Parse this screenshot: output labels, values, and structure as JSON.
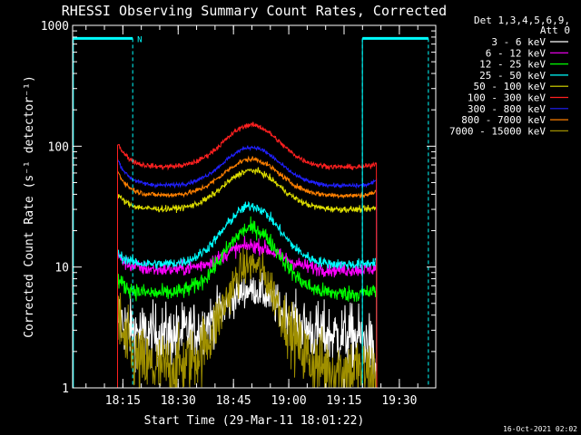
{
  "chart_data": {
    "type": "line",
    "title": "RHESSI Observing Summary Count Rates, Corrected",
    "xlabel": "Start Time (29-Mar-11 18:01:22)",
    "ylabel": "Corrected Count Rate (s⁻¹ detector⁻¹)",
    "yscale": "log",
    "ylim": [
      1,
      1000
    ],
    "xlim_minutes": [
      0,
      98.5
    ],
    "x_ticks": [
      {
        "label": "18:15",
        "minutes": 13.63
      },
      {
        "label": "18:30",
        "minutes": 28.63
      },
      {
        "label": "18:45",
        "minutes": 43.63
      },
      {
        "label": "19:00",
        "minutes": 58.63
      },
      {
        "label": "19:15",
        "minutes": 73.63
      },
      {
        "label": "19:30",
        "minutes": 88.63
      }
    ],
    "y_ticks": [
      {
        "label": "1",
        "value": 1
      },
      {
        "label": "10",
        "value": 10
      },
      {
        "label": "100",
        "value": 100
      },
      {
        "label": "1000",
        "value": 1000
      }
    ],
    "legend_header": [
      "Det 1,3,4,5,6,9,",
      "Att 0"
    ],
    "legend_placement": "top-right",
    "annotations": [
      {
        "text": "N",
        "minutes": 17.5,
        "value": 780,
        "color": "#00ffff"
      }
    ],
    "night_intervals_minutes": [
      [
        0,
        16.3
      ],
      [
        78.6,
        96.5
      ]
    ],
    "data_window_minutes": [
      12.2,
      82.5
    ],
    "series": [
      {
        "name": "3 - 6 keV",
        "color": "#ffffff",
        "base": 2.7,
        "peak": 6.5,
        "start": 4.0,
        "end_val": 1.3,
        "noise": 0.3
      },
      {
        "name": "6 - 12 keV",
        "color": "#ff00ff",
        "base": 9.5,
        "peak": 15,
        "start": 12.5,
        "end_val": 10,
        "noise": 0.07
      },
      {
        "name": "12 - 25 keV",
        "color": "#00ff00",
        "base": 6.0,
        "peak": 21,
        "start": 8.0,
        "end_val": 6.5,
        "noise": 0.08
      },
      {
        "name": "25 - 50 keV",
        "color": "#00ffff",
        "base": 10.5,
        "peak": 32,
        "start": 13,
        "end_val": 11.5,
        "noise": 0.05
      },
      {
        "name": "50 - 100 keV",
        "color": "#e0e000",
        "base": 30,
        "peak": 63,
        "start": 40,
        "end_val": 31,
        "noise": 0.03
      },
      {
        "name": "100 - 300 keV",
        "color": "#ff2020",
        "base": 67,
        "peak": 150,
        "start": 108,
        "end_val": 74,
        "noise": 0.025
      },
      {
        "name": "300 - 800 keV",
        "color": "#2020ff",
        "base": 47,
        "peak": 98,
        "start": 78,
        "end_val": 53,
        "noise": 0.02
      },
      {
        "name": "800 - 7000 keV",
        "color": "#ff8000",
        "base": 39,
        "peak": 78,
        "start": 62,
        "end_val": 43,
        "noise": 0.025
      },
      {
        "name": "7000 - 15000 keV",
        "color": "#a09000",
        "base": 1.4,
        "peak": 10.5,
        "start": 4.0,
        "end_val": 1.2,
        "noise": 0.35
      }
    ]
  },
  "footer": {
    "timestamp": "16-Oct-2021 02:02"
  }
}
